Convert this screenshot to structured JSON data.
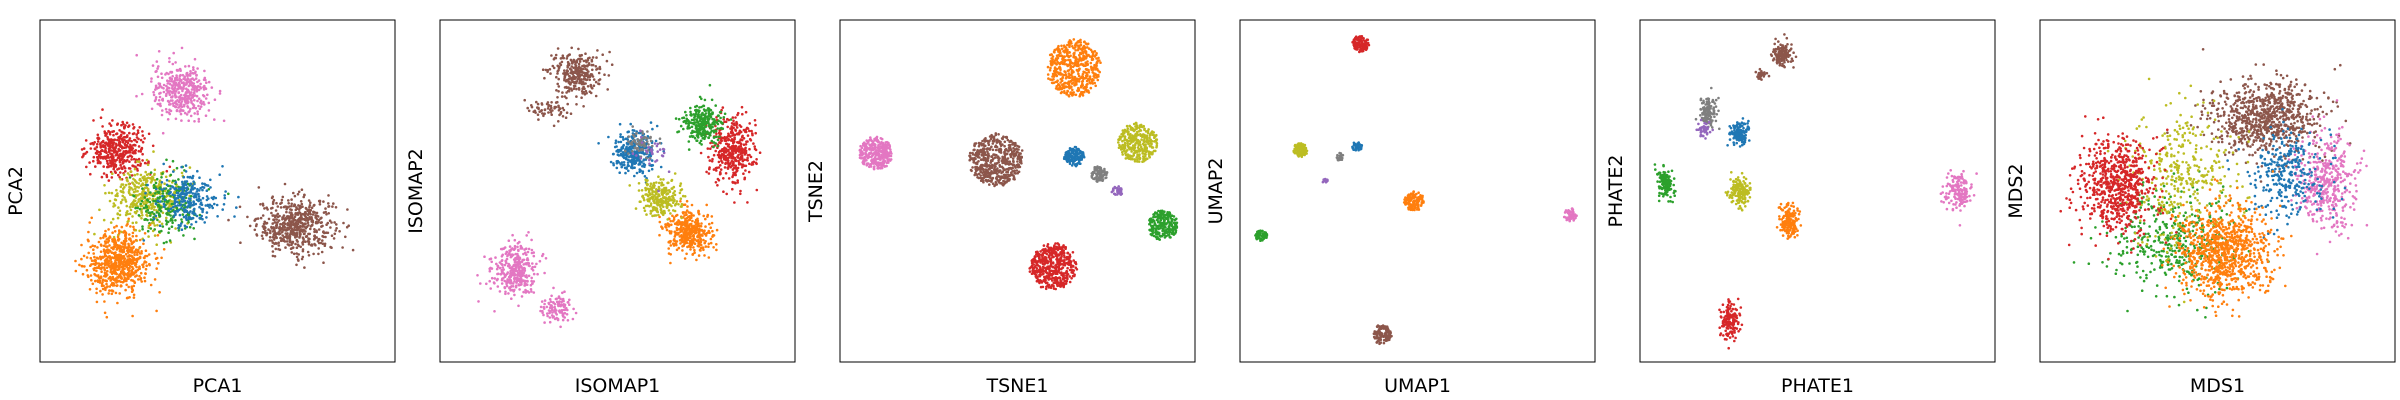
{
  "chart_data": [
    {
      "type": "scatter",
      "xlabel": "PCA1",
      "ylabel": "PCA2",
      "xlim": [
        0,
        100
      ],
      "ylim": [
        0,
        100
      ],
      "grid": false,
      "series": [
        {
          "color": "#8c564b",
          "clusters": [
            {
              "cx": 72,
              "cy": 40,
              "rx": 12,
              "ry": 9,
              "n": 550
            }
          ]
        },
        {
          "color": "#e377c2",
          "clusters": [
            {
              "cx": 40,
              "cy": 79,
              "rx": 9,
              "ry": 9,
              "n": 380
            }
          ]
        },
        {
          "color": "#d62728",
          "clusters": [
            {
              "cx": 22,
              "cy": 62,
              "rx": 9,
              "ry": 8,
              "n": 420
            }
          ]
        },
        {
          "color": "#bcbd22",
          "clusters": [
            {
              "cx": 30,
              "cy": 48,
              "rx": 11,
              "ry": 10,
              "n": 380
            }
          ]
        },
        {
          "color": "#2ca02c",
          "clusters": [
            {
              "cx": 36,
              "cy": 46,
              "rx": 10,
              "ry": 10,
              "n": 220
            }
          ]
        },
        {
          "color": "#1f77b4",
          "clusters": [
            {
              "cx": 42,
              "cy": 48,
              "rx": 9,
              "ry": 9,
              "n": 260
            }
          ]
        },
        {
          "color": "#ff7f0e",
          "clusters": [
            {
              "cx": 22,
              "cy": 29,
              "rx": 10,
              "ry": 10,
              "n": 650
            }
          ]
        }
      ]
    },
    {
      "type": "scatter",
      "xlabel": "ISOMAP1",
      "ylabel": "ISOMAP2",
      "xlim": [
        0,
        100
      ],
      "ylim": [
        0,
        100
      ],
      "grid": false,
      "series": [
        {
          "color": "#e377c2",
          "clusters": [
            {
              "cx": 21,
              "cy": 27,
              "rx": 7,
              "ry": 9,
              "n": 340
            },
            {
              "cx": 33,
              "cy": 16,
              "rx": 5,
              "ry": 4,
              "n": 110
            }
          ]
        },
        {
          "color": "#8c564b",
          "clusters": [
            {
              "cx": 38,
              "cy": 84,
              "rx": 8,
              "ry": 7,
              "n": 300
            },
            {
              "cx": 30,
              "cy": 74,
              "rx": 7,
              "ry": 3,
              "n": 60
            }
          ]
        },
        {
          "color": "#1f77b4",
          "clusters": [
            {
              "cx": 55,
              "cy": 61,
              "rx": 7,
              "ry": 7,
              "n": 320
            }
          ]
        },
        {
          "color": "#7f7f7f",
          "clusters": [
            {
              "cx": 57,
              "cy": 64,
              "rx": 4,
              "ry": 4,
              "n": 70
            }
          ]
        },
        {
          "color": "#d62728",
          "clusters": [
            {
              "cx": 82,
              "cy": 62,
              "rx": 7,
              "ry": 11,
              "n": 400
            }
          ]
        },
        {
          "color": "#2ca02c",
          "clusters": [
            {
              "cx": 74,
              "cy": 70,
              "rx": 6,
              "ry": 6,
              "n": 280
            }
          ]
        },
        {
          "color": "#ff7f0e",
          "clusters": [
            {
              "cx": 70,
              "cy": 38,
              "rx": 7,
              "ry": 7,
              "n": 380
            }
          ]
        },
        {
          "color": "#bcbd22",
          "clusters": [
            {
              "cx": 62,
              "cy": 48,
              "rx": 6,
              "ry": 6,
              "n": 250
            }
          ]
        },
        {
          "color": "#9467bd",
          "clusters": [
            {
              "cx": 60,
              "cy": 60,
              "rx": 6,
              "ry": 8,
              "n": 30
            }
          ]
        }
      ]
    },
    {
      "type": "scatter",
      "xlabel": "TSNE1",
      "ylabel": "TSNE2",
      "xlim": [
        0,
        100
      ],
      "ylim": [
        0,
        100
      ],
      "grid": false,
      "series": [
        {
          "color": "#ff7f0e",
          "clusters": [
            {
              "cx": 66,
              "cy": 86,
              "rx": 8,
              "ry": 9,
              "n": 500,
              "shape": "blob"
            }
          ]
        },
        {
          "color": "#e377c2",
          "clusters": [
            {
              "cx": 10,
              "cy": 61,
              "rx": 5,
              "ry": 5,
              "n": 300,
              "shape": "blob"
            }
          ]
        },
        {
          "color": "#8c564b",
          "clusters": [
            {
              "cx": 44,
              "cy": 59,
              "rx": 8,
              "ry": 8,
              "n": 500,
              "shape": "blob"
            }
          ]
        },
        {
          "color": "#1f77b4",
          "clusters": [
            {
              "cx": 66,
              "cy": 60,
              "rx": 3,
              "ry": 3,
              "n": 150,
              "shape": "blob"
            }
          ]
        },
        {
          "color": "#7f7f7f",
          "clusters": [
            {
              "cx": 73,
              "cy": 55,
              "rx": 2.5,
              "ry": 2.5,
              "n": 90,
              "shape": "blob"
            }
          ]
        },
        {
          "color": "#9467bd",
          "clusters": [
            {
              "cx": 78,
              "cy": 50,
              "rx": 1.8,
              "ry": 1.8,
              "n": 40,
              "shape": "blob"
            }
          ]
        },
        {
          "color": "#bcbd22",
          "clusters": [
            {
              "cx": 84,
              "cy": 64,
              "rx": 6,
              "ry": 6,
              "n": 300,
              "shape": "blob"
            }
          ]
        },
        {
          "color": "#2ca02c",
          "clusters": [
            {
              "cx": 91,
              "cy": 40,
              "rx": 4.5,
              "ry": 4.5,
              "n": 220,
              "shape": "blob"
            }
          ]
        },
        {
          "color": "#d62728",
          "clusters": [
            {
              "cx": 60,
              "cy": 28,
              "rx": 7,
              "ry": 7,
              "n": 450,
              "shape": "blob"
            }
          ]
        }
      ]
    },
    {
      "type": "scatter",
      "xlabel": "UMAP1",
      "ylabel": "UMAP2",
      "xlim": [
        0,
        100
      ],
      "ylim": [
        0,
        100
      ],
      "grid": false,
      "series": [
        {
          "color": "#d62728",
          "clusters": [
            {
              "cx": 34,
              "cy": 93,
              "rx": 2.5,
              "ry": 2.5,
              "n": 120,
              "shape": "blob"
            }
          ]
        },
        {
          "color": "#bcbd22",
          "clusters": [
            {
              "cx": 17,
              "cy": 62,
              "rx": 2.2,
              "ry": 2.2,
              "n": 100,
              "shape": "blob"
            }
          ]
        },
        {
          "color": "#1f77b4",
          "clusters": [
            {
              "cx": 33,
              "cy": 63,
              "rx": 1.5,
              "ry": 1.5,
              "n": 40,
              "shape": "blob"
            }
          ]
        },
        {
          "color": "#7f7f7f",
          "clusters": [
            {
              "cx": 28,
              "cy": 60,
              "rx": 1.2,
              "ry": 1.2,
              "n": 25,
              "shape": "blob"
            }
          ]
        },
        {
          "color": "#9467bd",
          "clusters": [
            {
              "cx": 24,
              "cy": 53,
              "rx": 0.8,
              "ry": 0.8,
              "n": 12,
              "shape": "blob"
            }
          ]
        },
        {
          "color": "#ff7f0e",
          "clusters": [
            {
              "cx": 49,
              "cy": 47,
              "rx": 3,
              "ry": 3,
              "n": 140,
              "shape": "blob"
            }
          ]
        },
        {
          "color": "#e377c2",
          "clusters": [
            {
              "cx": 93,
              "cy": 43,
              "rx": 2,
              "ry": 2,
              "n": 60,
              "shape": "blob"
            }
          ]
        },
        {
          "color": "#2ca02c",
          "clusters": [
            {
              "cx": 6,
              "cy": 37,
              "rx": 1.8,
              "ry": 1.8,
              "n": 60,
              "shape": "blob"
            }
          ]
        },
        {
          "color": "#8c564b",
          "clusters": [
            {
              "cx": 40,
              "cy": 8,
              "rx": 2.8,
              "ry": 3,
              "n": 120,
              "shape": "blob"
            }
          ]
        }
      ]
    },
    {
      "type": "scatter",
      "xlabel": "PHATE1",
      "ylabel": "PHATE2",
      "xlim": [
        0,
        100
      ],
      "ylim": [
        0,
        100
      ],
      "grid": false,
      "series": [
        {
          "color": "#8c564b",
          "clusters": [
            {
              "cx": 40,
              "cy": 90,
              "rx": 3,
              "ry": 4,
              "n": 150
            },
            {
              "cx": 34,
              "cy": 84,
              "rx": 2,
              "ry": 2,
              "n": 30
            }
          ]
        },
        {
          "color": "#7f7f7f",
          "clusters": [
            {
              "cx": 19,
              "cy": 73,
              "rx": 2.5,
              "ry": 5,
              "n": 130
            }
          ]
        },
        {
          "color": "#9467bd",
          "clusters": [
            {
              "cx": 18,
              "cy": 68,
              "rx": 2,
              "ry": 2.5,
              "n": 40
            }
          ]
        },
        {
          "color": "#1f77b4",
          "clusters": [
            {
              "cx": 28,
              "cy": 67,
              "rx": 3,
              "ry": 3.5,
              "n": 140
            }
          ]
        },
        {
          "color": "#2ca02c",
          "clusters": [
            {
              "cx": 7,
              "cy": 52,
              "rx": 2.5,
              "ry": 5,
              "n": 130
            }
          ]
        },
        {
          "color": "#bcbd22",
          "clusters": [
            {
              "cx": 28,
              "cy": 50,
              "rx": 3,
              "ry": 5,
              "n": 160
            }
          ]
        },
        {
          "color": "#ff7f0e",
          "clusters": [
            {
              "cx": 42,
              "cy": 41,
              "rx": 3,
              "ry": 5,
              "n": 180
            }
          ]
        },
        {
          "color": "#e377c2",
          "clusters": [
            {
              "cx": 90,
              "cy": 50,
              "rx": 4,
              "ry": 6,
              "n": 160
            }
          ]
        },
        {
          "color": "#d62728",
          "clusters": [
            {
              "cx": 25,
              "cy": 12,
              "rx": 3,
              "ry": 6,
              "n": 160
            }
          ]
        }
      ]
    },
    {
      "type": "scatter",
      "xlabel": "MDS1",
      "ylabel": "MDS2",
      "xlim": [
        0,
        100
      ],
      "ylim": [
        0,
        100
      ],
      "grid": false,
      "series": [
        {
          "color": "#8c564b",
          "clusters": [
            {
              "cx": 63,
              "cy": 72,
              "rx": 17,
              "ry": 12,
              "n": 800
            }
          ]
        },
        {
          "color": "#e377c2",
          "clusters": [
            {
              "cx": 81,
              "cy": 52,
              "rx": 9,
              "ry": 16,
              "n": 400
            }
          ]
        },
        {
          "color": "#1f77b4",
          "clusters": [
            {
              "cx": 70,
              "cy": 55,
              "rx": 12,
              "ry": 14,
              "n": 300
            }
          ]
        },
        {
          "color": "#2ca02c",
          "clusters": [
            {
              "cx": 38,
              "cy": 35,
              "rx": 20,
              "ry": 16,
              "n": 400
            }
          ]
        },
        {
          "color": "#bcbd22",
          "clusters": [
            {
              "cx": 40,
              "cy": 55,
              "rx": 18,
              "ry": 22,
              "n": 350
            }
          ]
        },
        {
          "color": "#d62728",
          "clusters": [
            {
              "cx": 22,
              "cy": 52,
              "rx": 12,
              "ry": 16,
              "n": 700
            }
          ]
        },
        {
          "color": "#ff7f0e",
          "clusters": [
            {
              "cx": 52,
              "cy": 32,
              "rx": 15,
              "ry": 15,
              "n": 900
            }
          ]
        }
      ]
    }
  ]
}
